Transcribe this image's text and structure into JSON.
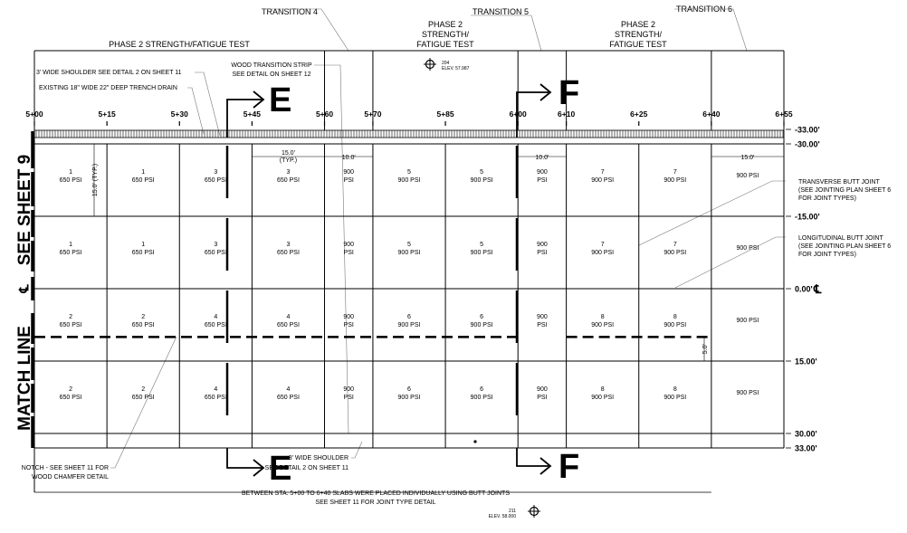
{
  "top": {
    "phase_left": "PHASE 2 STRENGTH/FATIGUE TEST",
    "phase_mid": [
      "PHASE 2",
      "STRENGTH/",
      "FATIGUE TEST"
    ],
    "phase_right": [
      "PHASE 2",
      "STRENGTH/",
      "FATIGUE TEST"
    ],
    "transition_4": "TRANSITION 4",
    "transition_5": "TRANSITION 5",
    "transition_6": "TRANSITION 6",
    "benchmark_top": [
      "204",
      "ELEV. 57.987"
    ],
    "note_shoulder": "3' WIDE SHOULDER SEE DETAIL 2 ON SHEET 11",
    "note_drain": "EXISTING 18\" WIDE 22\" DEEP TRENCH DRAIN",
    "note_wood": [
      "WOOD TRANSITION STRIP",
      "SEE DETAIL ON SHEET 12"
    ]
  },
  "sections": {
    "e": "E",
    "f": "F"
  },
  "stations": [
    "5+00",
    "5+15",
    "5+30",
    "5+45",
    "5+60",
    "5+70",
    "5+85",
    "6+00",
    "6+10",
    "6+25",
    "6+40",
    "6+55"
  ],
  "offsets": [
    "-33.00'",
    "-30.00'",
    "-15.00'",
    "0.00'",
    "15.00'",
    "30.00'",
    "33.00'"
  ],
  "centerline_symbol": "℄",
  "left_labels": {
    "see_sheet": "SEE SHEET 9",
    "cl": "℄",
    "match_line": "MATCH LINE"
  },
  "dimensions": {
    "typ_h": [
      "15.0'",
      "(TYP.)"
    ],
    "typ_v": "15.0' (TYP.)",
    "trans_4": "10.0'",
    "trans_5": "10.0'",
    "last": "15.0'",
    "dowel": "5.0'"
  },
  "slabs": [
    [
      [
        "1",
        "650 PSI"
      ],
      [
        "1",
        "650 PSI"
      ],
      [
        "2",
        "650 PSI"
      ],
      [
        "2",
        "650 PSI"
      ]
    ],
    [
      [
        "1",
        "650 PSI"
      ],
      [
        "1",
        "650 PSI"
      ],
      [
        "2",
        "650 PSI"
      ],
      [
        "2",
        "650 PSI"
      ]
    ],
    [
      [
        "3",
        "650 PSI"
      ],
      [
        "3",
        "650 PSI"
      ],
      [
        "4",
        "650 PSI"
      ],
      [
        "4",
        "650 PSI"
      ]
    ],
    [
      [
        "3",
        "650 PSI"
      ],
      [
        "3",
        "650 PSI"
      ],
      [
        "4",
        "650 PSI"
      ],
      [
        "4",
        "650 PSI"
      ]
    ],
    [
      [
        "900",
        "PSI"
      ],
      [
        "900",
        "PSI"
      ],
      [
        "900",
        "PSI"
      ],
      [
        "900",
        "PSI"
      ]
    ],
    [
      [
        "5",
        "900 PSI"
      ],
      [
        "5",
        "900 PSI"
      ],
      [
        "6",
        "900 PSI"
      ],
      [
        "6",
        "900 PSI"
      ]
    ],
    [
      [
        "5",
        "900 PSI"
      ],
      [
        "5",
        "900 PSI"
      ],
      [
        "6",
        "900 PSI"
      ],
      [
        "6",
        "900 PSI"
      ]
    ],
    [
      [
        "900",
        "PSI"
      ],
      [
        "900",
        "PSI"
      ],
      [
        "900",
        "PSI"
      ],
      [
        "900",
        "PSI"
      ]
    ],
    [
      [
        "7",
        "900 PSI"
      ],
      [
        "7",
        "900 PSI"
      ],
      [
        "8",
        "900 PSI"
      ],
      [
        "8",
        "900 PSI"
      ]
    ],
    [
      [
        "7",
        "900 PSI"
      ],
      [
        "7",
        "900 PSI"
      ],
      [
        "8",
        "900 PSI"
      ],
      [
        "8",
        "900 PSI"
      ]
    ],
    [
      [
        "",
        "900 PSI"
      ],
      [
        "",
        "900 PSI"
      ],
      [
        "",
        "900 PSI"
      ],
      [
        "",
        "900 PSI"
      ]
    ]
  ],
  "right_notes": {
    "transverse": [
      "TRANSVERSE BUTT JOINT",
      "(SEE JOINTING PLAN SHEET 6",
      "FOR JOINT TYPES)"
    ],
    "longitudinal": [
      "LONGITUDINAL BUTT JOINT",
      "(SEE JOINTING PLAN SHEET 6",
      "FOR JOINT TYPES)"
    ]
  },
  "bottom": {
    "notch": [
      "NOTCH - SEE SHEET 11 FOR",
      "WOOD CHAMFER DETAIL"
    ],
    "shoulder": [
      "3' WIDE SHOULDER",
      "SEE DETAIL 2 ON SHEET 11"
    ],
    "note_line1": "BETWEEN STA. 5+00 TO 6+40 SLABS WERE PLACED INDIVIDUALLY USING BUTT JOINTS",
    "note_line2": "SEE SHEET 11 FOR JOINT TYPE DETAIL",
    "benchmark": [
      "211",
      "ELEV. 58.000"
    ]
  }
}
